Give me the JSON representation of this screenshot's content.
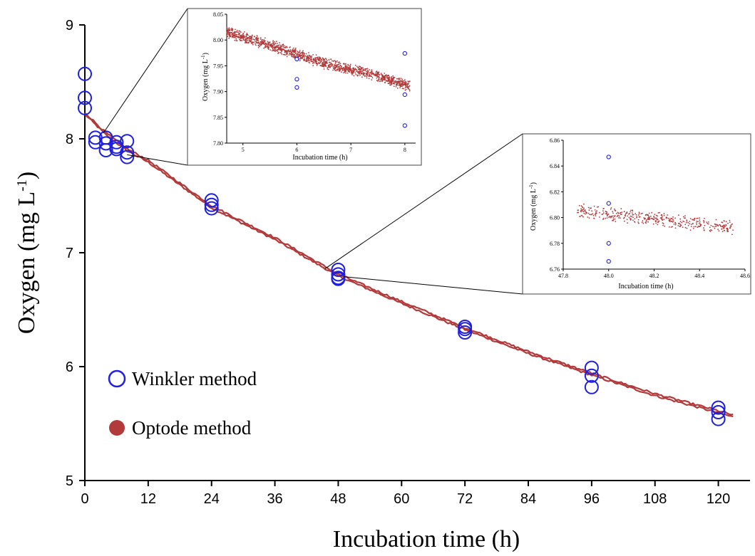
{
  "chart_data": [
    {
      "type": "scatter",
      "xlabel": "Incubation time (h)",
      "ylabel": "Oxygen (mg L⁻¹)",
      "xlim": [
        0,
        126
      ],
      "ylim": [
        5,
        9
      ],
      "xticks": [
        "0",
        "12",
        "24",
        "36",
        "48",
        "60",
        "72",
        "84",
        "96",
        "108",
        "120"
      ],
      "yticks": [
        "5",
        "6",
        "7",
        "8",
        "9"
      ],
      "legend_position": "bottom-left",
      "series": [
        {
          "name": "Winkler method",
          "marker": "open-circle",
          "color": "#1f1fe0",
          "x": [
            0,
            0,
            0,
            2,
            2,
            4,
            4,
            4,
            6,
            6,
            6,
            8,
            8,
            8,
            24,
            24,
            24,
            48,
            48,
            48,
            48,
            72,
            72,
            72,
            96,
            96,
            96,
            120,
            120,
            120
          ],
          "y": [
            8.57,
            8.36,
            8.27,
            8.01,
            7.97,
            8.01,
            7.96,
            7.9,
            7.97,
            7.93,
            7.91,
            7.98,
            7.88,
            7.84,
            7.46,
            7.42,
            7.39,
            6.85,
            6.81,
            6.78,
            6.77,
            6.35,
            6.33,
            6.3,
            5.99,
            5.92,
            5.82,
            5.64,
            5.6,
            5.54
          ]
        },
        {
          "name": "Optode method",
          "marker": "filled-circle",
          "color": "#b23a3a",
          "x": [
            0,
            4,
            8,
            12,
            24,
            36,
            48,
            60,
            72,
            84,
            96,
            108,
            120,
            123
          ],
          "y": [
            8.22,
            8.04,
            7.9,
            7.8,
            7.4,
            7.12,
            6.8,
            6.56,
            6.33,
            6.12,
            5.93,
            5.75,
            5.6,
            5.56
          ]
        }
      ]
    },
    {
      "type": "scatter",
      "xlabel": "Incubation time (h)",
      "ylabel": "Oxygen (mg L⁻¹)",
      "xlim": [
        4.7,
        8.2
      ],
      "ylim": [
        7.8,
        8.05
      ],
      "xticks": [
        "5",
        "6",
        "7",
        "8"
      ],
      "yticks": [
        "7.80",
        "7.85",
        "7.90",
        "7.95",
        "8.00",
        "8.05"
      ],
      "series": [
        {
          "marker": "open-circle",
          "color": "#1f1fe0",
          "x": [
            6.0,
            6.0,
            6.0,
            8.0,
            8.0,
            8.0
          ],
          "y": [
            7.963,
            7.924,
            7.908,
            7.974,
            7.894,
            7.834
          ]
        },
        {
          "marker": "dot",
          "color": "#b23a3a",
          "x": [
            4.7,
            5.5,
            6.5,
            7.5,
            8.1
          ],
          "y": [
            8.015,
            7.99,
            7.955,
            7.93,
            7.91
          ]
        }
      ]
    },
    {
      "type": "scatter",
      "xlabel": "Incubation time (h)",
      "ylabel": "Oxygen (mg L⁻¹)",
      "xlim": [
        47.8,
        48.6
      ],
      "ylim": [
        6.76,
        6.86
      ],
      "xticks": [
        "47.8",
        "48.0",
        "48.2",
        "48.4",
        "48.6"
      ],
      "yticks": [
        "6.76",
        "6.78",
        "6.80",
        "6.82",
        "6.84",
        "6.86"
      ],
      "series": [
        {
          "marker": "open-circle",
          "color": "#1f1fe0",
          "x": [
            48.0,
            48.0,
            48.0,
            48.0
          ],
          "y": [
            6.847,
            6.811,
            6.78,
            6.766
          ]
        },
        {
          "marker": "dot",
          "color": "#b23a3a",
          "x": [
            47.86,
            48.0,
            48.2,
            48.4,
            48.55
          ],
          "y": [
            6.805,
            6.803,
            6.799,
            6.795,
            6.792
          ]
        }
      ]
    }
  ]
}
